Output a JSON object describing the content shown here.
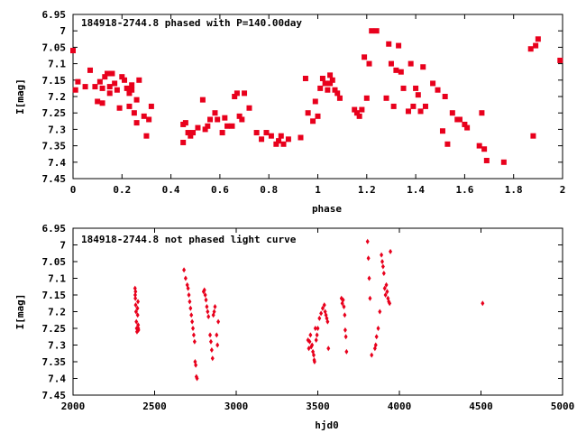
{
  "chart_data": [
    {
      "type": "scatter",
      "title": "184918-2744.8 phased with P=140.00day",
      "xlabel": "phase",
      "ylabel": "I[mag]",
      "xlim": [
        0,
        2
      ],
      "ylim": [
        6.95,
        7.45
      ],
      "y_inverted": true,
      "x_ticks": [
        "0",
        "0.2",
        "0.4",
        "0.6",
        "0.8",
        "1",
        "1.2",
        "1.4",
        "1.6",
        "1.8",
        "2"
      ],
      "y_ticks": [
        "6.95",
        "7",
        "7.05",
        "7.1",
        "7.15",
        "7.2",
        "7.25",
        "7.3",
        "7.35",
        "7.4",
        "7.45"
      ],
      "marker": "filled square",
      "color": "#e8001c",
      "series": [
        {
          "points": [
            [
              0.0,
              7.06
            ],
            [
              0.01,
              7.18
            ],
            [
              0.02,
              7.155
            ],
            [
              0.05,
              7.17
            ],
            [
              0.07,
              7.12
            ],
            [
              0.09,
              7.17
            ],
            [
              0.1,
              7.215
            ],
            [
              0.11,
              7.155
            ],
            [
              0.12,
              7.175
            ],
            [
              0.12,
              7.22
            ],
            [
              0.13,
              7.14
            ],
            [
              0.14,
              7.13
            ],
            [
              0.15,
              7.17
            ],
            [
              0.15,
              7.19
            ],
            [
              0.16,
              7.13
            ],
            [
              0.17,
              7.16
            ],
            [
              0.18,
              7.18
            ],
            [
              0.19,
              7.235
            ],
            [
              0.2,
              7.14
            ],
            [
              0.21,
              7.15
            ],
            [
              0.22,
              7.175
            ],
            [
              0.23,
              7.23
            ],
            [
              0.23,
              7.19
            ],
            [
              0.24,
              7.165
            ],
            [
              0.24,
              7.18
            ],
            [
              0.25,
              7.25
            ],
            [
              0.26,
              7.21
            ],
            [
              0.26,
              7.28
            ],
            [
              0.27,
              7.15
            ],
            [
              0.29,
              7.26
            ],
            [
              0.3,
              7.32
            ],
            [
              0.31,
              7.27
            ],
            [
              0.32,
              7.23
            ],
            [
              0.45,
              7.34
            ],
            [
              0.45,
              7.285
            ],
            [
              0.46,
              7.28
            ],
            [
              0.47,
              7.31
            ],
            [
              0.48,
              7.32
            ],
            [
              0.49,
              7.31
            ],
            [
              0.51,
              7.295
            ],
            [
              0.53,
              7.21
            ],
            [
              0.54,
              7.3
            ],
            [
              0.55,
              7.29
            ],
            [
              0.56,
              7.27
            ],
            [
              0.58,
              7.25
            ],
            [
              0.59,
              7.27
            ],
            [
              0.61,
              7.31
            ],
            [
              0.62,
              7.265
            ],
            [
              0.63,
              7.29
            ],
            [
              0.65,
              7.29
            ],
            [
              0.66,
              7.2
            ],
            [
              0.67,
              7.19
            ],
            [
              0.68,
              7.26
            ],
            [
              0.69,
              7.27
            ],
            [
              0.7,
              7.19
            ],
            [
              0.72,
              7.235
            ],
            [
              0.75,
              7.31
            ],
            [
              0.77,
              7.33
            ],
            [
              0.79,
              7.31
            ],
            [
              0.81,
              7.32
            ],
            [
              0.83,
              7.345
            ],
            [
              0.84,
              7.335
            ],
            [
              0.85,
              7.32
            ],
            [
              0.86,
              7.345
            ],
            [
              0.88,
              7.33
            ],
            [
              0.93,
              7.325
            ],
            [
              0.95,
              7.145
            ],
            [
              0.96,
              7.25
            ],
            [
              0.98,
              7.275
            ],
            [
              0.99,
              7.215
            ],
            [
              1.0,
              7.26
            ],
            [
              1.01,
              7.175
            ],
            [
              1.02,
              7.145
            ],
            [
              1.03,
              7.16
            ],
            [
              1.04,
              7.18
            ],
            [
              1.05,
              7.135
            ],
            [
              1.05,
              7.16
            ],
            [
              1.06,
              7.15
            ],
            [
              1.07,
              7.18
            ],
            [
              1.08,
              7.19
            ],
            [
              1.09,
              7.205
            ],
            [
              1.15,
              7.24
            ],
            [
              1.16,
              7.25
            ],
            [
              1.17,
              7.26
            ],
            [
              1.18,
              7.24
            ],
            [
              1.19,
              7.08
            ],
            [
              1.2,
              7.205
            ],
            [
              1.21,
              7.1
            ],
            [
              1.22,
              7.0
            ],
            [
              1.24,
              7.0
            ],
            [
              1.28,
              7.205
            ],
            [
              1.29,
              7.04
            ],
            [
              1.3,
              7.1
            ],
            [
              1.31,
              7.23
            ],
            [
              1.32,
              7.12
            ],
            [
              1.33,
              7.045
            ],
            [
              1.34,
              7.125
            ],
            [
              1.35,
              7.175
            ],
            [
              1.37,
              7.245
            ],
            [
              1.38,
              7.1
            ],
            [
              1.39,
              7.23
            ],
            [
              1.4,
              7.175
            ],
            [
              1.41,
              7.195
            ],
            [
              1.42,
              7.245
            ],
            [
              1.43,
              7.11
            ],
            [
              1.44,
              7.23
            ],
            [
              1.47,
              7.16
            ],
            [
              1.49,
              7.18
            ],
            [
              1.51,
              7.305
            ],
            [
              1.52,
              7.2
            ],
            [
              1.53,
              7.345
            ],
            [
              1.55,
              7.25
            ],
            [
              1.57,
              7.27
            ],
            [
              1.58,
              7.27
            ],
            [
              1.6,
              7.285
            ],
            [
              1.61,
              7.295
            ],
            [
              1.66,
              7.35
            ],
            [
              1.67,
              7.25
            ],
            [
              1.68,
              7.36
            ],
            [
              1.69,
              7.395
            ],
            [
              1.76,
              7.4
            ],
            [
              1.87,
              7.055
            ],
            [
              1.88,
              7.32
            ],
            [
              1.89,
              7.045
            ],
            [
              1.9,
              7.025
            ],
            [
              1.99,
              7.09
            ]
          ]
        }
      ]
    },
    {
      "type": "scatter",
      "title": "184918-2744.8 not phased light curve",
      "xlabel": "hjd0",
      "ylabel": "I[mag]",
      "xlim": [
        2000,
        5000
      ],
      "ylim": [
        6.95,
        7.45
      ],
      "y_inverted": true,
      "x_ticks": [
        "2000",
        "2500",
        "3000",
        "3500",
        "4000",
        "4500",
        "5000"
      ],
      "y_ticks": [
        "6.95",
        "7",
        "7.05",
        "7.1",
        "7.15",
        "7.2",
        "7.25",
        "7.3",
        "7.35",
        "7.4",
        "7.45"
      ],
      "marker": "small diamond",
      "color": "#e8001c",
      "series": [
        {
          "points": [
            [
              2380,
              7.13
            ],
            [
              2381,
              7.15
            ],
            [
              2382,
              7.16
            ],
            [
              2383,
              7.14
            ],
            [
              2384,
              7.18
            ],
            [
              2386,
              7.2
            ],
            [
              2388,
              7.23
            ],
            [
              2390,
              7.25
            ],
            [
              2392,
              7.26
            ],
            [
              2395,
              7.19
            ],
            [
              2396,
              7.21
            ],
            [
              2398,
              7.17
            ],
            [
              2399,
              7.24
            ],
            [
              2400,
              7.25
            ],
            [
              2401,
              7.255
            ],
            [
              2680,
              7.075
            ],
            [
              2690,
              7.1
            ],
            [
              2700,
              7.12
            ],
            [
              2705,
              7.13
            ],
            [
              2710,
              7.15
            ],
            [
              2715,
              7.17
            ],
            [
              2720,
              7.19
            ],
            [
              2725,
              7.21
            ],
            [
              2730,
              7.23
            ],
            [
              2735,
              7.25
            ],
            [
              2740,
              7.27
            ],
            [
              2745,
              7.29
            ],
            [
              2748,
              7.35
            ],
            [
              2752,
              7.36
            ],
            [
              2756,
              7.395
            ],
            [
              2760,
              7.4
            ],
            [
              2800,
              7.14
            ],
            [
              2805,
              7.135
            ],
            [
              2810,
              7.15
            ],
            [
              2815,
              7.165
            ],
            [
              2820,
              7.185
            ],
            [
              2825,
              7.2
            ],
            [
              2830,
              7.215
            ],
            [
              2840,
              7.27
            ],
            [
              2845,
              7.29
            ],
            [
              2850,
              7.315
            ],
            [
              2855,
              7.34
            ],
            [
              2860,
              7.21
            ],
            [
              2865,
              7.2
            ],
            [
              2870,
              7.185
            ],
            [
              2880,
              7.27
            ],
            [
              2885,
              7.3
            ],
            [
              2890,
              7.23
            ],
            [
              3440,
              7.285
            ],
            [
              3445,
              7.31
            ],
            [
              3450,
              7.29
            ],
            [
              3455,
              7.27
            ],
            [
              3460,
              7.305
            ],
            [
              3465,
              7.3
            ],
            [
              3470,
              7.32
            ],
            [
              3475,
              7.33
            ],
            [
              3478,
              7.345
            ],
            [
              3480,
              7.35
            ],
            [
              3485,
              7.25
            ],
            [
              3490,
              7.285
            ],
            [
              3495,
              7.27
            ],
            [
              3500,
              7.25
            ],
            [
              3510,
              7.22
            ],
            [
              3520,
              7.205
            ],
            [
              3530,
              7.19
            ],
            [
              3540,
              7.18
            ],
            [
              3545,
              7.2
            ],
            [
              3550,
              7.21
            ],
            [
              3555,
              7.22
            ],
            [
              3560,
              7.23
            ],
            [
              3565,
              7.31
            ],
            [
              3645,
              7.16
            ],
            [
              3650,
              7.175
            ],
            [
              3655,
              7.165
            ],
            [
              3660,
              7.185
            ],
            [
              3665,
              7.21
            ],
            [
              3668,
              7.255
            ],
            [
              3672,
              7.275
            ],
            [
              3676,
              7.32
            ],
            [
              3805,
              6.99
            ],
            [
              3810,
              7.04
            ],
            [
              3815,
              7.1
            ],
            [
              3820,
              7.16
            ],
            [
              3830,
              7.33
            ],
            [
              3850,
              7.31
            ],
            [
              3855,
              7.3
            ],
            [
              3860,
              7.275
            ],
            [
              3870,
              7.25
            ],
            [
              3880,
              7.2
            ],
            [
              3890,
              7.03
            ],
            [
              3895,
              7.05
            ],
            [
              3900,
              7.065
            ],
            [
              3905,
              7.085
            ],
            [
              3910,
              7.13
            ],
            [
              3915,
              7.15
            ],
            [
              3920,
              7.12
            ],
            [
              3925,
              7.14
            ],
            [
              3930,
              7.16
            ],
            [
              3935,
              7.17
            ],
            [
              3940,
              7.175
            ],
            [
              3945,
              7.02
            ],
            [
              4510,
              7.175
            ]
          ]
        }
      ]
    }
  ]
}
